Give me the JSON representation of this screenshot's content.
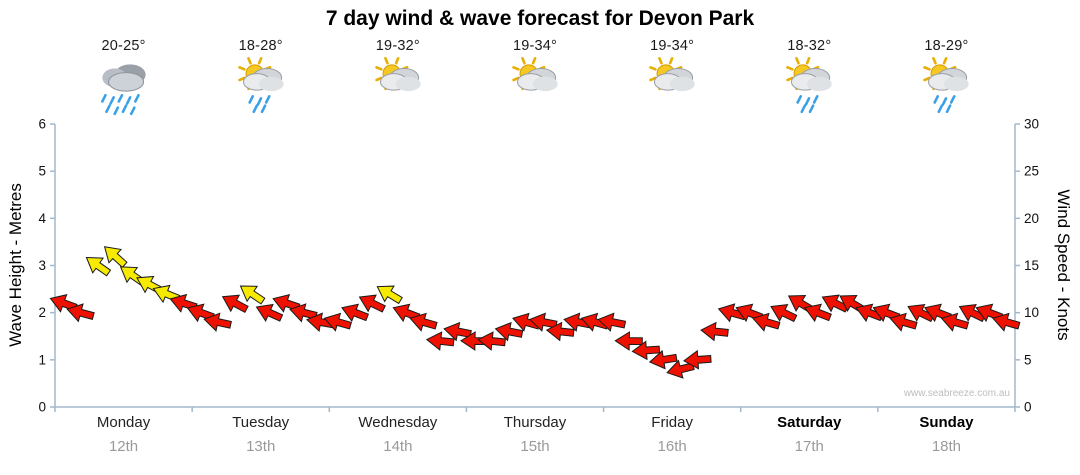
{
  "title": "7 day wind & wave forecast for Devon Park",
  "watermark": "www.seabreeze.com.au",
  "colors": {
    "red": "#ee1100",
    "yellow": "#f6ea00",
    "arrow_outline": "#1a1a1a",
    "axis": "#a3b8cc",
    "tick_text": "#111111",
    "date_text": "#9a9a9a"
  },
  "days": [
    {
      "label": "Monday",
      "date": "12th",
      "temp": "20-25°",
      "icon": "rain",
      "bold": false
    },
    {
      "label": "Tuesday",
      "date": "13th",
      "temp": "18-28°",
      "icon": "sun-cloud-rain",
      "bold": false
    },
    {
      "label": "Wednesday",
      "date": "14th",
      "temp": "19-32°",
      "icon": "sun-cloud",
      "bold": false
    },
    {
      "label": "Thursday",
      "date": "15th",
      "temp": "19-34°",
      "icon": "sun-cloud",
      "bold": false
    },
    {
      "label": "Friday",
      "date": "16th",
      "temp": "19-34°",
      "icon": "sun-cloud",
      "bold": false
    },
    {
      "label": "Saturday",
      "date": "17th",
      "temp": "18-32°",
      "icon": "sun-cloud-rain",
      "bold": true
    },
    {
      "label": "Sunday",
      "date": "18th",
      "temp": "18-29°",
      "icon": "sun-cloud-rain",
      "bold": true
    }
  ],
  "chart_data": {
    "type": "scatter",
    "title": "7 day wind & wave forecast for Devon Park",
    "y_left": {
      "label": "Wave Height - Metres",
      "range": [
        0,
        6
      ],
      "ticks": [
        0,
        1,
        2,
        3,
        4,
        5,
        6
      ]
    },
    "y_right": {
      "label": "Wind Speed - Knots",
      "range": [
        0,
        30
      ],
      "ticks": [
        0,
        5,
        10,
        15,
        20,
        25,
        30
      ]
    },
    "x_axis": {
      "range_days": [
        0,
        7
      ],
      "tick_labels": [
        "Monday 12th",
        "Tuesday 13th",
        "Wednesday 14th",
        "Thursday 15th",
        "Friday 16th",
        "Saturday 17th",
        "Sunday 18th"
      ]
    },
    "grid": "off",
    "legend": "none",
    "marker": "wind-direction-arrow",
    "angle_convention": "dir_deg = screen degrees clockwise, 0 = arrow pointing right",
    "point_format": [
      "day_index",
      "slot_of_8",
      "knots",
      "color",
      "dir_deg"
    ],
    "series": [
      {
        "name": "Wind speed & direction",
        "unit": "knots",
        "points": [
          [
            0,
            0,
            11,
            "red",
            200
          ],
          [
            0,
            1,
            10,
            "red",
            195
          ],
          [
            0,
            2,
            15,
            "yellow",
            215
          ],
          [
            0,
            3,
            16,
            "yellow",
            222
          ],
          [
            0,
            4,
            14,
            "yellow",
            215
          ],
          [
            0,
            5,
            13,
            "yellow",
            208
          ],
          [
            0,
            6,
            12,
            "yellow",
            202
          ],
          [
            0,
            7,
            11,
            "red",
            198
          ],
          [
            1,
            0,
            10,
            "red",
            200
          ],
          [
            1,
            1,
            9,
            "red",
            192
          ],
          [
            1,
            2,
            11,
            "red",
            208
          ],
          [
            1,
            3,
            12,
            "yellow",
            214
          ],
          [
            1,
            4,
            10,
            "red",
            204
          ],
          [
            1,
            5,
            11,
            "red",
            199
          ],
          [
            1,
            6,
            10,
            "red",
            194
          ],
          [
            1,
            7,
            9,
            "red",
            190
          ],
          [
            2,
            0,
            9,
            "red",
            196
          ],
          [
            2,
            1,
            10,
            "red",
            201
          ],
          [
            2,
            2,
            11,
            "red",
            206
          ],
          [
            2,
            3,
            12,
            "yellow",
            211
          ],
          [
            2,
            4,
            10,
            "red",
            201
          ],
          [
            2,
            5,
            9,
            "red",
            196
          ],
          [
            2,
            6,
            7,
            "red",
            186
          ],
          [
            2,
            7,
            8,
            "red",
            191
          ],
          [
            3,
            0,
            7,
            "red",
            181
          ],
          [
            3,
            1,
            7,
            "red",
            186
          ],
          [
            3,
            2,
            8,
            "red",
            191
          ],
          [
            3,
            3,
            9,
            "red",
            196
          ],
          [
            3,
            4,
            9,
            "red",
            191
          ],
          [
            3,
            5,
            8,
            "red",
            186
          ],
          [
            3,
            6,
            9,
            "red",
            191
          ],
          [
            3,
            7,
            9,
            "red",
            196
          ],
          [
            4,
            0,
            9,
            "red",
            191
          ],
          [
            4,
            1,
            7,
            "red",
            181
          ],
          [
            4,
            2,
            6,
            "red",
            176
          ],
          [
            4,
            3,
            5,
            "red",
            171
          ],
          [
            4,
            4,
            4,
            "red",
            166
          ],
          [
            4,
            5,
            5,
            "red",
            176
          ],
          [
            4,
            6,
            8,
            "red",
            186
          ],
          [
            4,
            7,
            10,
            "red",
            196
          ],
          [
            5,
            0,
            10,
            "red",
            201
          ],
          [
            5,
            1,
            9,
            "red",
            196
          ],
          [
            5,
            2,
            10,
            "red",
            206
          ],
          [
            5,
            3,
            11,
            "red",
            211
          ],
          [
            5,
            4,
            10,
            "red",
            201
          ],
          [
            5,
            5,
            11,
            "red",
            206
          ],
          [
            5,
            6,
            11,
            "red",
            211
          ],
          [
            5,
            7,
            10,
            "red",
            201
          ],
          [
            6,
            0,
            10,
            "red",
            201
          ],
          [
            6,
            1,
            9,
            "red",
            196
          ],
          [
            6,
            2,
            10,
            "red",
            206
          ],
          [
            6,
            3,
            10,
            "red",
            201
          ],
          [
            6,
            4,
            9,
            "red",
            196
          ],
          [
            6,
            5,
            10,
            "red",
            206
          ],
          [
            6,
            6,
            10,
            "red",
            201
          ],
          [
            6,
            7,
            9,
            "red",
            196
          ]
        ]
      }
    ]
  }
}
